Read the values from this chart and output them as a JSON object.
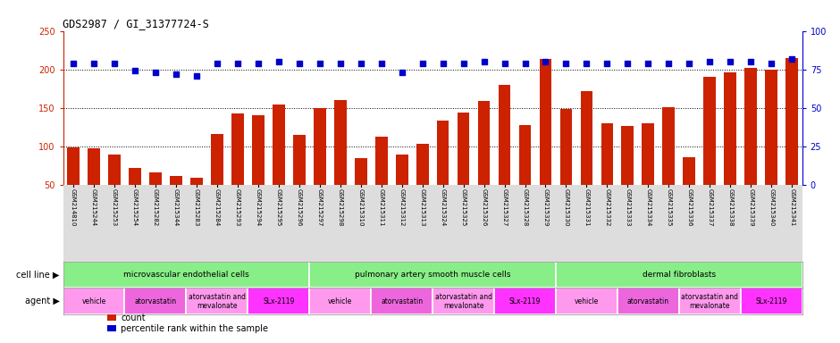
{
  "title": "GDS2987 / GI_31377724-S",
  "samples": [
    "GSM214810",
    "GSM215244",
    "GSM215253",
    "GSM215254",
    "GSM215282",
    "GSM215344",
    "GSM215283",
    "GSM215284",
    "GSM215293",
    "GSM215294",
    "GSM215295",
    "GSM215296",
    "GSM215297",
    "GSM215298",
    "GSM215310",
    "GSM215311",
    "GSM215312",
    "GSM215313",
    "GSM215324",
    "GSM215325",
    "GSM215326",
    "GSM215327",
    "GSM215328",
    "GSM215329",
    "GSM215330",
    "GSM215331",
    "GSM215332",
    "GSM215333",
    "GSM215334",
    "GSM215335",
    "GSM215336",
    "GSM215337",
    "GSM215338",
    "GSM215339",
    "GSM215340",
    "GSM215341"
  ],
  "counts": [
    98,
    97,
    89,
    72,
    66,
    61,
    59,
    116,
    143,
    140,
    154,
    115,
    150,
    160,
    85,
    113,
    89,
    103,
    133,
    144,
    159,
    180,
    128,
    214,
    149,
    172,
    130,
    126,
    130,
    151,
    86,
    190,
    196,
    202,
    200,
    215
  ],
  "percentiles": [
    79,
    79,
    79,
    74,
    73,
    72,
    71,
    79,
    79,
    79,
    80,
    79,
    79,
    79,
    79,
    79,
    73,
    79,
    79,
    79,
    80,
    79,
    79,
    80,
    79,
    79,
    79,
    79,
    79,
    79,
    79,
    80,
    80,
    80,
    79,
    82
  ],
  "ylim_left": [
    50,
    250
  ],
  "ylim_right": [
    0,
    100
  ],
  "yticks_left": [
    50,
    100,
    150,
    200,
    250
  ],
  "yticks_right": [
    0,
    25,
    50,
    75,
    100
  ],
  "bar_color": "#CC2200",
  "dot_color": "#0000CC",
  "grid_color": "#000000",
  "cell_line_color": "#88EE88",
  "agent_color_vehicle": "#FF99EE",
  "agent_color_atorvastatin": "#EE66DD",
  "agent_color_mevalonate": "#FF99EE",
  "agent_color_slx": "#FF33FF",
  "cell_lines": [
    {
      "label": "microvascular endothelial cells",
      "start": 0,
      "end": 11
    },
    {
      "label": "pulmonary artery smooth muscle cells",
      "start": 12,
      "end": 23
    },
    {
      "label": "dermal fibroblasts",
      "start": 24,
      "end": 35
    }
  ],
  "agents": [
    {
      "label": "vehicle",
      "start": 0,
      "end": 2,
      "color": "#FF99EE"
    },
    {
      "label": "atorvastatin",
      "start": 3,
      "end": 5,
      "color": "#EE66DD"
    },
    {
      "label": "atorvastatin and\nmevalonate",
      "start": 6,
      "end": 8,
      "color": "#FF99EE"
    },
    {
      "label": "SLx-2119",
      "start": 9,
      "end": 11,
      "color": "#FF33FF"
    },
    {
      "label": "vehicle",
      "start": 12,
      "end": 14,
      "color": "#FF99EE"
    },
    {
      "label": "atorvastatin",
      "start": 15,
      "end": 17,
      "color": "#EE66DD"
    },
    {
      "label": "atorvastatin and\nmevalonate",
      "start": 18,
      "end": 20,
      "color": "#FF99EE"
    },
    {
      "label": "SLx-2119",
      "start": 21,
      "end": 23,
      "color": "#FF33FF"
    },
    {
      "label": "vehicle",
      "start": 24,
      "end": 26,
      "color": "#FF99EE"
    },
    {
      "label": "atorvastatin",
      "start": 27,
      "end": 29,
      "color": "#EE66DD"
    },
    {
      "label": "atorvastatin and\nmevalonate",
      "start": 30,
      "end": 32,
      "color": "#FF99EE"
    },
    {
      "label": "SLx-2119",
      "start": 33,
      "end": 35,
      "color": "#FF33FF"
    }
  ],
  "axis_label_color_left": "#CC2200",
  "axis_label_color_right": "#0000CC",
  "background_color": "#FFFFFF",
  "xlabel_bg_color": "#DDDDDD",
  "legend_items": [
    {
      "label": "count",
      "color": "#CC2200"
    },
    {
      "label": "percentile rank within the sample",
      "color": "#0000CC"
    }
  ]
}
